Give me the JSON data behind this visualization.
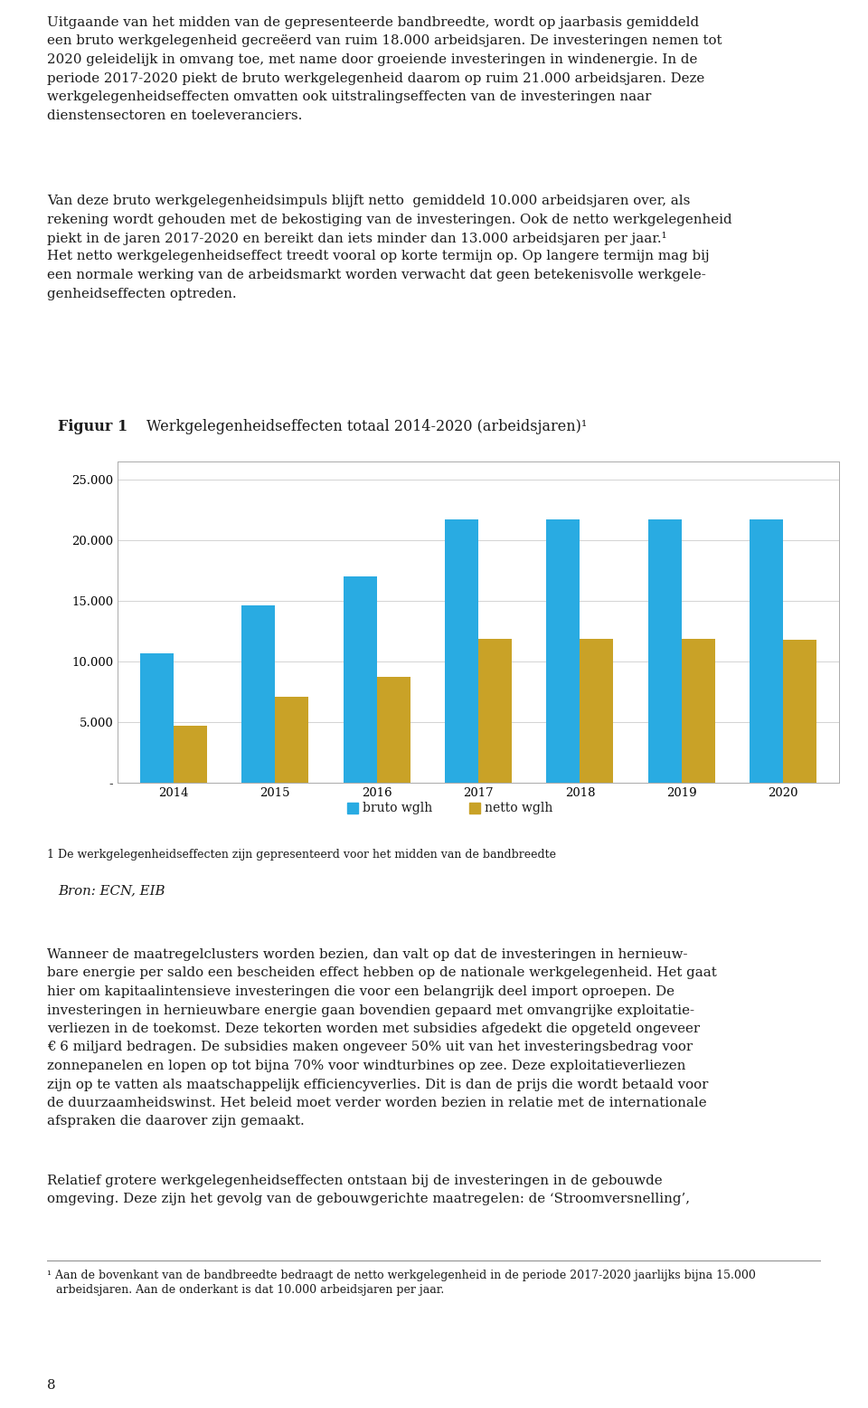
{
  "page_bg": "#ffffff",
  "top_text": "Uitgaande van het midden van de gepresenteerde bandbreedte, wordt op jaarbasis gemiddeld een bruto werkgelegenheid gecreëerd van ruim 18.000 arbeidsjaren. De investeringen nemen tot 2020 geleidelijk in omvang toe, met name door groeiende investeringen in windenergie. In de periode 2017-2020 piekt de bruto werkgelegenheid daarom op ruim 21.000 arbeidsjaren. Deze werkgelegenheidseffecten omvatten ook uitstralingseffecten van de investeringen naar dienstensectoren en toeleveranciers.",
  "middle_text": "Van deze bruto werkgelegenheidsimpuls blijft netto  gemiddeld 10.000 arbeidsjaren over, als rekening wordt gehouden met de bekostiging van de investeringen. Ook de netto werkgelegenheid piekt in de jaren 2017-2020 en bereikt dan iets minder dan 13.000 arbeidsjaren per jaar.¹ Het netto werkgelegenheidseffect treedt vooral op korte termijn op. Op langere termijn mag bij een normale werking van de arbeidsmarkt worden verwacht dat geen betekenisvolle werkgelegenheidseffecten optreden.",
  "header_bg": "#c9a227",
  "box_bg": "#fae5b0",
  "figuur_label": "Figuur 1",
  "figuur_title": "Werkgelegenheidseffecten totaal 2014-2020 (arbeidsjaren)¹",
  "bron_label": "Bron: ECN, EIB",
  "footnote1": "1 De werkgelegenheidseffecten zijn gepresenteerd voor het midden van de bandbreedte",
  "chart_bg": "#ffffff",
  "years": [
    "2014",
    "2015",
    "2016",
    "2017",
    "2018",
    "2019",
    "2020"
  ],
  "bruto": [
    10700,
    14600,
    17000,
    21700,
    21700,
    21700,
    21700
  ],
  "netto": [
    4700,
    7100,
    8700,
    11900,
    11900,
    11900,
    11800
  ],
  "bruto_color": "#29abe2",
  "netto_color": "#c9a227",
  "yticks": [
    0,
    5000,
    10000,
    15000,
    20000,
    25000
  ],
  "ytick_labels": [
    "-",
    "5.000",
    "10.000",
    "15.000",
    "20.000",
    "25.000"
  ],
  "ylim": [
    0,
    26500
  ],
  "legend_bruto": "bruto wglh",
  "legend_netto": "netto wglh",
  "bottom_text1": "Wanneer de maatregelclusters worden bezien, dan valt op dat de investeringen in hernieuwbare energie per saldo een bescheiden effect hebben op de nationale werkgelegenheid. Het gaat hier om kapitaalintensieve investeringen die voor een belangrijk deel import oproepen. De investeringen in hernieuwbare energie gaan bovendien gepaard met omvangrijke exploitatieverliezen in de toekomst. Deze tekorten worden met subsidies afgedekt die opgeteld ongeveer € 6 miljard bedragen. De subsidies maken ongeveer 50% uit van het investeringsbedrag voor zonnepanelen en lopen op tot bijna 70% voor windturbines op zee. Deze exploitatieverliezen zijn op te vatten als maatschappelijk efficiencyverlies. Dit is dan de prijs die wordt betaald voor de duurzaamheidswinst. Het beleid moet verder worden bezien in relatie met de internationale afspraken die daarover zijn gemaakt.",
  "bottom_text2": "Relatief grotere werkgelegenheidseffecten ontstaan bij de investeringen in de gebouwde omgeving. Deze zijn het gevolg van de gebouwgerichte maatregelen: de ‘Stroomversnelling’,",
  "footnote_bottom": "¹ Aan de bovenkant van de bandbreedte bedraagt de netto werkgelegenheid in de periode 2017-2020 jaarlijks bijna 15.000\n   arbeidsjaren. Aan de onderkant is dat 10.000 arbeidsjaren per jaar.",
  "page_number": "8",
  "text_color": "#1a1a1a",
  "font_size_body": 10.8,
  "font_size_fig_label": 11.5,
  "font_size_fig_title": 11.5,
  "font_size_bron": 10.8,
  "font_size_footnote": 9.0,
  "font_size_axis": 9.5,
  "font_size_legend": 10.0
}
